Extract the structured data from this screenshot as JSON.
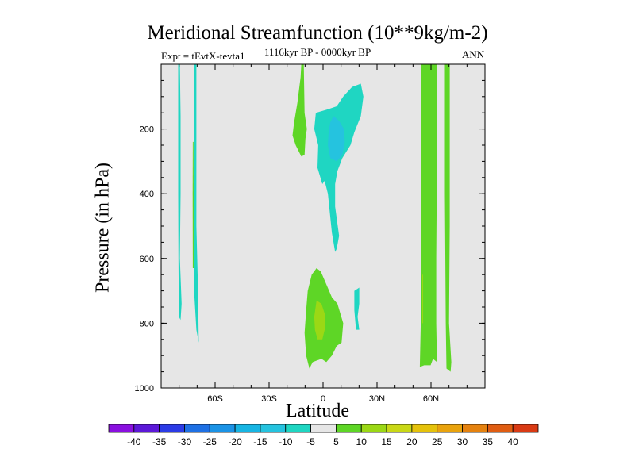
{
  "colors": {
    "background": "#e6e6e6",
    "positive_5": "#5ed626",
    "positive_10": "#9bd815",
    "negative_5": "#1fd6c2",
    "negative_10": "#25c3df"
  },
  "chart_data": {
    "type": "contour",
    "title": "Meridional Streamfunction (10**9kg/m-2)",
    "subtitle": "1116kyr BP - 0000kyr BP",
    "left_label": "Expt = tEvtX-tevta1",
    "right_label": "ANN",
    "xlabel": "Latitude",
    "ylabel": "Pressure (in hPa)",
    "xlim": [
      -90,
      90
    ],
    "ylim": [
      1000,
      0
    ],
    "x_ticks": [
      -60,
      -30,
      0,
      30,
      60
    ],
    "x_tick_labels": [
      "60S",
      "30S",
      "0",
      "30N",
      "60N"
    ],
    "y_ticks": [
      200,
      400,
      600,
      800,
      1000
    ],
    "y_tick_labels": [
      "200",
      "400",
      "600",
      "800",
      "1000"
    ],
    "colorbar": {
      "levels": [
        -40,
        -35,
        -30,
        -25,
        -20,
        -15,
        -10,
        -5,
        5,
        10,
        15,
        20,
        25,
        30,
        35,
        40
      ],
      "level_labels": [
        "-40",
        "-35",
        "-30",
        "-25",
        "-20",
        "-15",
        "-10",
        "-5",
        "5",
        "10",
        "15",
        "20",
        "25",
        "30",
        "35",
        "40"
      ],
      "colors": [
        "#8a10e0",
        "#5c18d8",
        "#2b3be6",
        "#1e70e4",
        "#1b93e6",
        "#17b5e3",
        "#25c3df",
        "#1fd6c2",
        "#e6e6e6",
        "#5ed626",
        "#9bd815",
        "#c9d816",
        "#e5c20b",
        "#e9a30d",
        "#e5820f",
        "#e05d12",
        "#d93a14"
      ]
    },
    "regions": [
      {
        "name": "sh-polar-column-1",
        "sign": "negative",
        "level": -5,
        "polygon": [
          [
            -80.5,
            0
          ],
          [
            -79.6,
            0
          ],
          [
            -79.2,
            160
          ],
          [
            -79.2,
            400
          ],
          [
            -79.6,
            600
          ],
          [
            -78.6,
            740
          ],
          [
            -79.2,
            790
          ],
          [
            -80.1,
            780
          ],
          [
            -80.4,
            600
          ],
          [
            -80.5,
            400
          ]
        ]
      },
      {
        "name": "sh-polar-column-2",
        "sign": "negative",
        "level": -5,
        "polygon": [
          [
            -71.7,
            0
          ],
          [
            -70.4,
            0
          ],
          [
            -70.4,
            500
          ],
          [
            -69.5,
            700
          ],
          [
            -69.1,
            860
          ],
          [
            -70.4,
            820
          ],
          [
            -71.7,
            700
          ],
          [
            -71.7,
            400
          ]
        ]
      },
      {
        "name": "sh-polar-sliver",
        "sign": "positive",
        "level": 5,
        "polygon": [
          [
            -72.4,
            240
          ],
          [
            -72.0,
            240
          ],
          [
            -71.9,
            400
          ],
          [
            -71.9,
            630
          ],
          [
            -72.4,
            630
          ],
          [
            -72.5,
            400
          ]
        ]
      },
      {
        "name": "tropical-upper-positive",
        "sign": "positive",
        "level": 5,
        "polygon": [
          [
            -12.1,
            0
          ],
          [
            -10.7,
            0
          ],
          [
            -10.3,
            150
          ],
          [
            -9.0,
            200
          ],
          [
            -9.8,
            230
          ],
          [
            -10.3,
            280
          ],
          [
            -12.1,
            285
          ],
          [
            -15.2,
            250
          ],
          [
            -17.0,
            220
          ],
          [
            -16.1,
            180
          ],
          [
            -14.3,
            120
          ],
          [
            -12.5,
            40
          ]
        ]
      },
      {
        "name": "tropical-upper-negative",
        "sign": "negative",
        "level": -5,
        "polygon": [
          [
            -4.0,
            150
          ],
          [
            2.2,
            140
          ],
          [
            7.6,
            130
          ],
          [
            11.2,
            100
          ],
          [
            16.1,
            70
          ],
          [
            21.0,
            60
          ],
          [
            22.4,
            100
          ],
          [
            21.0,
            160
          ],
          [
            17.4,
            210
          ],
          [
            15.2,
            250
          ],
          [
            10.7,
            290
          ],
          [
            8.0,
            330
          ],
          [
            6.7,
            370
          ],
          [
            6.7,
            440
          ],
          [
            8.9,
            530
          ],
          [
            7.6,
            570
          ],
          [
            6.7,
            580
          ],
          [
            4.9,
            520
          ],
          [
            2.7,
            400
          ],
          [
            0.9,
            360
          ],
          [
            -0.4,
            370
          ],
          [
            -3.1,
            320
          ],
          [
            -2.7,
            250
          ],
          [
            -4.9,
            200
          ]
        ]
      },
      {
        "name": "tropical-upper-negative-core",
        "sign": "negative",
        "level": -10,
        "polygon": [
          [
            5.8,
            160
          ],
          [
            8.9,
            175
          ],
          [
            11.6,
            200
          ],
          [
            12.1,
            240
          ],
          [
            10.7,
            280
          ],
          [
            7.6,
            300
          ],
          [
            4.0,
            290
          ],
          [
            2.7,
            250
          ],
          [
            3.1,
            210
          ],
          [
            4.0,
            180
          ]
        ]
      },
      {
        "name": "tropical-lower-positive",
        "sign": "positive",
        "level": 5,
        "polygon": [
          [
            -3.6,
            630
          ],
          [
            -1.3,
            640
          ],
          [
            1.8,
            680
          ],
          [
            4.9,
            720
          ],
          [
            8.0,
            740
          ],
          [
            11.2,
            800
          ],
          [
            10.3,
            860
          ],
          [
            7.6,
            870
          ],
          [
            4.9,
            900
          ],
          [
            1.8,
            920
          ],
          [
            -0.9,
            910
          ],
          [
            -5.8,
            920
          ],
          [
            -7.6,
            940
          ],
          [
            -9.4,
            900
          ],
          [
            -10.3,
            830
          ],
          [
            -9.4,
            760
          ],
          [
            -8.5,
            700
          ],
          [
            -6.3,
            650
          ]
        ]
      },
      {
        "name": "tropical-lower-positive-core",
        "sign": "positive",
        "level": 10,
        "polygon": [
          [
            -3.6,
            730
          ],
          [
            -0.9,
            740
          ],
          [
            0.9,
            770
          ],
          [
            0.9,
            820
          ],
          [
            -0.4,
            850
          ],
          [
            -3.1,
            850
          ],
          [
            -4.5,
            820
          ],
          [
            -4.9,
            780
          ]
        ]
      },
      {
        "name": "tropical-lower-negative",
        "sign": "negative",
        "level": -5,
        "polygon": [
          [
            17.4,
            700
          ],
          [
            20.1,
            690
          ],
          [
            20.1,
            740
          ],
          [
            19.2,
            780
          ],
          [
            20.1,
            820
          ],
          [
            18.3,
            820
          ],
          [
            17.4,
            760
          ]
        ]
      },
      {
        "name": "nh-midlat-column",
        "sign": "positive",
        "level": 5,
        "polygon": [
          [
            54.3,
            0
          ],
          [
            63.3,
            0
          ],
          [
            63.3,
            300
          ],
          [
            62.9,
            600
          ],
          [
            62.9,
            800
          ],
          [
            63.3,
            920
          ],
          [
            61.1,
            910
          ],
          [
            59.8,
            930
          ],
          [
            56.2,
            930
          ],
          [
            53.8,
            935
          ],
          [
            54.3,
            800
          ],
          [
            54.3,
            400
          ]
        ]
      },
      {
        "name": "nh-midlat-sliver",
        "sign": "positive",
        "level": 10,
        "polygon": [
          [
            55.2,
            650
          ],
          [
            55.6,
            650
          ],
          [
            55.6,
            800
          ],
          [
            55.2,
            800
          ]
        ]
      },
      {
        "name": "nh-polar-column",
        "sign": "positive",
        "level": 5,
        "polygon": [
          [
            67.7,
            0
          ],
          [
            70.4,
            0
          ],
          [
            70.4,
            500
          ],
          [
            70.0,
            800
          ],
          [
            71.3,
            920
          ],
          [
            70.9,
            950
          ],
          [
            68.6,
            940
          ],
          [
            68.2,
            800
          ],
          [
            67.7,
            400
          ]
        ]
      }
    ]
  }
}
